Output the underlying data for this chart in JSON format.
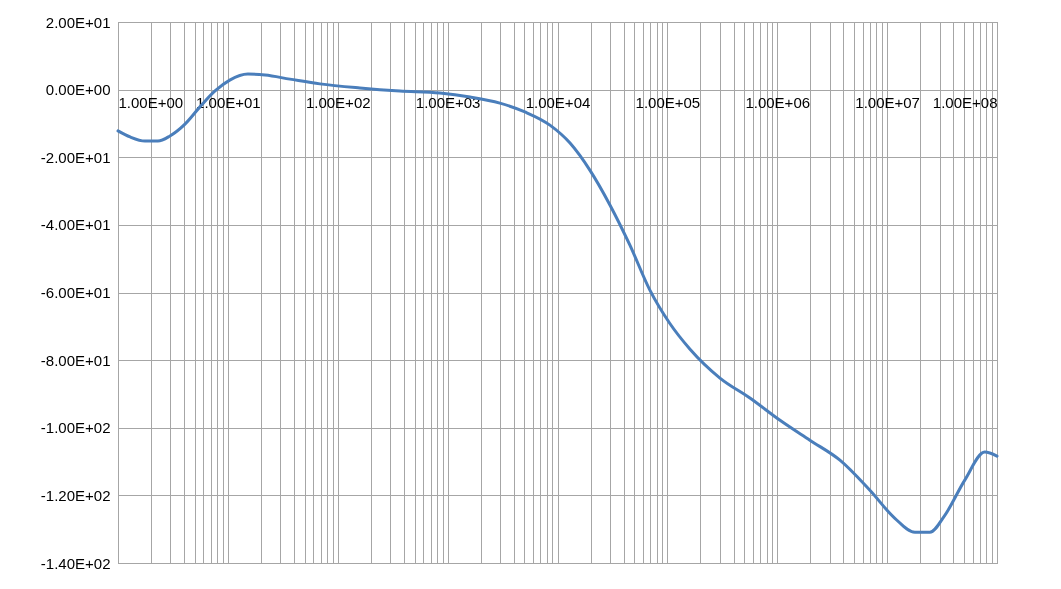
{
  "chart_data": {
    "type": "line",
    "x": [
      1,
      1.29,
      1.76,
      2.31,
      2.97,
      4.07,
      5.57,
      7.64,
      10.4,
      15.2,
      21.8,
      36.7,
      68.9,
      159,
      368,
      851,
      1600,
      2990,
      5050,
      8530,
      13000,
      19700,
      30000,
      45600,
      69300,
      105000,
      160000,
      301000,
      564000,
      1060000,
      1980000,
      3720000,
      6970000,
      11700000,
      17900000,
      24500000,
      33500000,
      50900000,
      77400000,
      100000000
    ],
    "series": [
      {
        "color": "#4a7ebb",
        "values": [
          -12.2,
          -14.0,
          -15.2,
          -15.2,
          -13.7,
          -10.2,
          -5.1,
          -0.4,
          2.8,
          4.6,
          4.3,
          3.1,
          1.7,
          0.5,
          -0.4,
          -1.0,
          -2.2,
          -4.0,
          -6.6,
          -10.5,
          -15.8,
          -23.8,
          -34.1,
          -46.0,
          -59.3,
          -69.1,
          -76.7,
          -85.3,
          -91.2,
          -97.8,
          -103.7,
          -109.6,
          -118.5,
          -126.7,
          -130.9,
          -130.9,
          -125.9,
          -115.5,
          -107.2,
          -108.4
        ]
      }
    ],
    "log": "x",
    "grid": true,
    "legend": false,
    "marker": "none",
    "line_style": "solid",
    "xlim": [
      1,
      100000000
    ],
    "ylim": [
      -140,
      20
    ],
    "xticks": [
      {
        "value": 1,
        "label": "1.00E+00"
      },
      {
        "value": 2,
        "label": null
      },
      {
        "value": 3,
        "label": null
      },
      {
        "value": 4,
        "label": null
      },
      {
        "value": 5,
        "label": null
      },
      {
        "value": 6,
        "label": null
      },
      {
        "value": 7,
        "label": null
      },
      {
        "value": 8,
        "label": null
      },
      {
        "value": 9,
        "label": null
      },
      {
        "value": 10,
        "label": "1.00E+01"
      },
      {
        "value": 20,
        "label": null
      },
      {
        "value": 30,
        "label": null
      },
      {
        "value": 40,
        "label": null
      },
      {
        "value": 50,
        "label": null
      },
      {
        "value": 60,
        "label": null
      },
      {
        "value": 70,
        "label": null
      },
      {
        "value": 80,
        "label": null
      },
      {
        "value": 90,
        "label": null
      },
      {
        "value": 100,
        "label": "1.00E+02"
      },
      {
        "value": 200,
        "label": null
      },
      {
        "value": 300,
        "label": null
      },
      {
        "value": 400,
        "label": null
      },
      {
        "value": 500,
        "label": null
      },
      {
        "value": 600,
        "label": null
      },
      {
        "value": 700,
        "label": null
      },
      {
        "value": 800,
        "label": null
      },
      {
        "value": 900,
        "label": null
      },
      {
        "value": 1000,
        "label": "1.00E+03"
      },
      {
        "value": 2000,
        "label": null
      },
      {
        "value": 3000,
        "label": null
      },
      {
        "value": 4000,
        "label": null
      },
      {
        "value": 5000,
        "label": null
      },
      {
        "value": 6000,
        "label": null
      },
      {
        "value": 7000,
        "label": null
      },
      {
        "value": 8000,
        "label": null
      },
      {
        "value": 9000,
        "label": null
      },
      {
        "value": 10000,
        "label": "1.00E+04"
      },
      {
        "value": 20000,
        "label": null
      },
      {
        "value": 30000,
        "label": null
      },
      {
        "value": 40000,
        "label": null
      },
      {
        "value": 50000,
        "label": null
      },
      {
        "value": 60000,
        "label": null
      },
      {
        "value": 70000,
        "label": null
      },
      {
        "value": 80000,
        "label": null
      },
      {
        "value": 90000,
        "label": null
      },
      {
        "value": 100000,
        "label": "1.00E+05"
      },
      {
        "value": 200000,
        "label": null
      },
      {
        "value": 300000,
        "label": null
      },
      {
        "value": 400000,
        "label": null
      },
      {
        "value": 500000,
        "label": null
      },
      {
        "value": 600000,
        "label": null
      },
      {
        "value": 700000,
        "label": null
      },
      {
        "value": 800000,
        "label": null
      },
      {
        "value": 900000,
        "label": null
      },
      {
        "value": 1000000,
        "label": "1.00E+06"
      },
      {
        "value": 2000000,
        "label": null
      },
      {
        "value": 3000000,
        "label": null
      },
      {
        "value": 4000000,
        "label": null
      },
      {
        "value": 5000000,
        "label": null
      },
      {
        "value": 6000000,
        "label": null
      },
      {
        "value": 7000000,
        "label": null
      },
      {
        "value": 8000000,
        "label": null
      },
      {
        "value": 9000000,
        "label": null
      },
      {
        "value": 10000000,
        "label": "1.00E+07"
      },
      {
        "value": 20000000,
        "label": null
      },
      {
        "value": 30000000,
        "label": null
      },
      {
        "value": 40000000,
        "label": null
      },
      {
        "value": 50000000,
        "label": null
      },
      {
        "value": 60000000,
        "label": null
      },
      {
        "value": 70000000,
        "label": null
      },
      {
        "value": 80000000,
        "label": null
      },
      {
        "value": 90000000,
        "label": null
      },
      {
        "value": 100000000,
        "label": "1.00E+08"
      }
    ],
    "yticks": [
      {
        "value": 20,
        "label": "2.00E+01"
      },
      {
        "value": 0,
        "label": "0.00E+00"
      },
      {
        "value": -20,
        "label": "-2.00E+01"
      },
      {
        "value": -40,
        "label": "-4.00E+01"
      },
      {
        "value": -60,
        "label": "-6.00E+01"
      },
      {
        "value": -80,
        "label": "-8.00E+01"
      },
      {
        "value": -100,
        "label": "-1.00E+02"
      },
      {
        "value": -120,
        "label": "-1.20E+02"
      },
      {
        "value": -140,
        "label": "-1.40E+02"
      }
    ]
  }
}
